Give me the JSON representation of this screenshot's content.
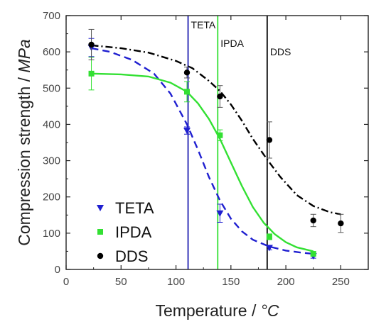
{
  "chart_data": {
    "type": "scatter",
    "xlabel": "Temperature",
    "xunit": "°C",
    "ylabel": "Compression strength",
    "yunit": "MPa",
    "xlim": [
      0,
      275
    ],
    "ylim": [
      0,
      700
    ],
    "xticks": [
      "0",
      "50",
      "100",
      "150",
      "200",
      "250"
    ],
    "yticks": [
      "0",
      "100",
      "200",
      "300",
      "400",
      "500",
      "600",
      "700"
    ],
    "grid": false,
    "legend_position": "bottom-left",
    "series": [
      {
        "name": "TETA",
        "color": "#1f1fd0",
        "marker": "triangle-down",
        "points": [
          {
            "x": 23,
            "y": 612,
            "err": 25
          },
          {
            "x": 110,
            "y": 383,
            "err": 10
          },
          {
            "x": 140,
            "y": 155,
            "err": 25
          },
          {
            "x": 185,
            "y": 60,
            "err": 6
          },
          {
            "x": 225,
            "y": 37,
            "err": 6
          }
        ],
        "fit_line": "dashed",
        "fit": [
          [
            23,
            610
          ],
          [
            40,
            600
          ],
          [
            60,
            578
          ],
          [
            80,
            540
          ],
          [
            95,
            485
          ],
          [
            110,
            400
          ],
          [
            120,
            330
          ],
          [
            130,
            255
          ],
          [
            140,
            190
          ],
          [
            150,
            140
          ],
          [
            160,
            105
          ],
          [
            170,
            82
          ],
          [
            185,
            63
          ],
          [
            200,
            52
          ],
          [
            215,
            46
          ],
          [
            225,
            43
          ]
        ]
      },
      {
        "name": "IPDA",
        "color": "#33e033",
        "marker": "square",
        "points": [
          {
            "x": 23,
            "y": 540,
            "err": 45
          },
          {
            "x": 110,
            "y": 490,
            "err": 28
          },
          {
            "x": 140,
            "y": 370,
            "err": 15
          },
          {
            "x": 185,
            "y": 90,
            "err": 8
          },
          {
            "x": 225,
            "y": 43,
            "err": 5
          }
        ],
        "fit_line": "solid",
        "fit": [
          [
            23,
            540
          ],
          [
            50,
            538
          ],
          [
            75,
            532
          ],
          [
            95,
            515
          ],
          [
            110,
            490
          ],
          [
            120,
            458
          ],
          [
            130,
            415
          ],
          [
            140,
            360
          ],
          [
            150,
            295
          ],
          [
            160,
            230
          ],
          [
            170,
            172
          ],
          [
            180,
            128
          ],
          [
            190,
            97
          ],
          [
            200,
            75
          ],
          [
            210,
            61
          ],
          [
            225,
            50
          ]
        ]
      },
      {
        "name": "DDS",
        "color": "#000000",
        "marker": "circle",
        "points": [
          {
            "x": 23,
            "y": 620,
            "err": 42
          },
          {
            "x": 110,
            "y": 543,
            "err": 15
          },
          {
            "x": 140,
            "y": 477,
            "err": 30
          },
          {
            "x": 185,
            "y": 357,
            "err": 50
          },
          {
            "x": 225,
            "y": 135,
            "err": 17
          },
          {
            "x": 250,
            "y": 127,
            "err": 25
          }
        ],
        "fit_line": "dash-dot",
        "fit": [
          [
            23,
            618
          ],
          [
            50,
            610
          ],
          [
            75,
            598
          ],
          [
            100,
            575
          ],
          [
            115,
            555
          ],
          [
            130,
            520
          ],
          [
            140,
            492
          ],
          [
            150,
            455
          ],
          [
            160,
            410
          ],
          [
            170,
            360
          ],
          [
            183,
            303
          ],
          [
            195,
            255
          ],
          [
            210,
            205
          ],
          [
            225,
            175
          ],
          [
            240,
            158
          ],
          [
            250,
            152
          ]
        ]
      }
    ],
    "vertical_lines": [
      {
        "x": 111,
        "label": "TETA",
        "color": "#1f1fb0"
      },
      {
        "x": 138,
        "label": "IPDA",
        "color": "#33e033"
      },
      {
        "x": 183,
        "label": "DDS",
        "color": "#000000"
      }
    ]
  }
}
